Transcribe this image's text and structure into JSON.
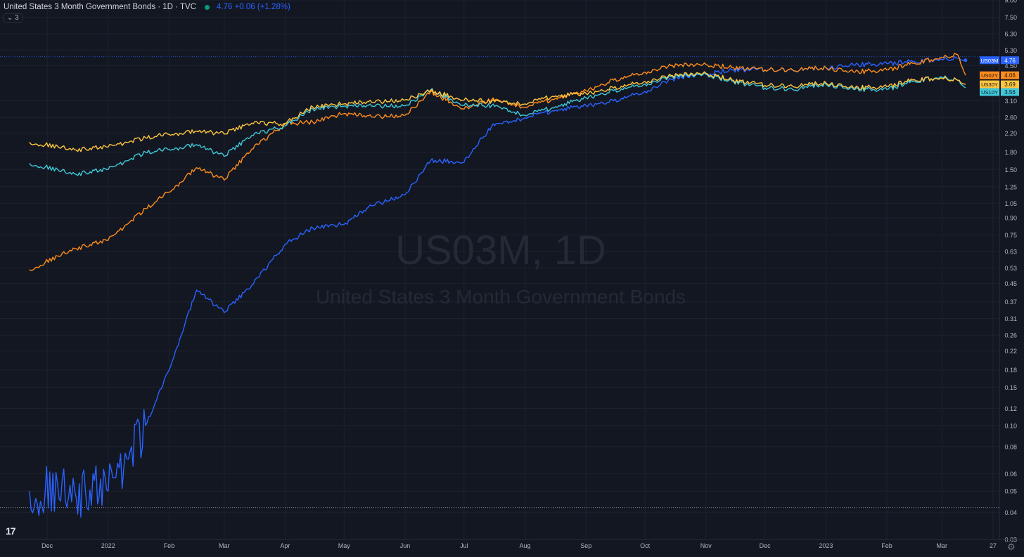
{
  "header": {
    "title": "United States 3 Month Government Bonds · 1D · TVC",
    "price_change": "4.76  +0.06 (+1.28%)",
    "collapse_label": "⌄ 3"
  },
  "watermark": {
    "symbol": "US03M, 1D",
    "name": "United States 3 Month Government Bonds"
  },
  "logo": "17",
  "colors": {
    "background": "#131722",
    "US03M": "#2962ff",
    "US02Y": "#ff8c1a",
    "US30Y": "#ffc53d",
    "US10Y": "#40c8d8"
  },
  "chart_data": {
    "type": "line",
    "yscale": "log",
    "ylim": [
      0.03,
      9.0
    ],
    "grid": true,
    "y_ticks": [
      "9.00",
      "7.50",
      "6.30",
      "5.30",
      "4.50",
      "3.10",
      "2.60",
      "2.20",
      "1.80",
      "1.50",
      "1.25",
      "1.05",
      "0.90",
      "0.75",
      "0.63",
      "0.53",
      "0.45",
      "0.37",
      "0.31",
      "0.26",
      "0.22",
      "0.18",
      "0.15",
      "0.12",
      "0.10",
      "0.08",
      "0.06",
      "0.05",
      "0.04",
      "0.03"
    ],
    "x_ticks": [
      "Dec",
      "2022",
      "Feb",
      "Mar",
      "Apr",
      "May",
      "Jun",
      "Jul",
      "Aug",
      "Sep",
      "Oct",
      "Nov",
      "Dec",
      "2023",
      "Feb",
      "Mar",
      "27"
    ],
    "x": [
      "2021-11-22",
      "2021-12-15",
      "2022-01-01",
      "2022-01-20",
      "2022-02-01",
      "2022-02-15",
      "2022-03-01",
      "2022-03-15",
      "2022-04-01",
      "2022-04-15",
      "2022-05-01",
      "2022-05-15",
      "2022-06-01",
      "2022-06-14",
      "2022-07-01",
      "2022-07-15",
      "2022-08-01",
      "2022-08-15",
      "2022-09-01",
      "2022-09-15",
      "2022-10-01",
      "2022-10-15",
      "2022-11-01",
      "2022-11-15",
      "2022-12-01",
      "2022-12-15",
      "2023-01-01",
      "2023-01-15",
      "2023-02-01",
      "2023-02-15",
      "2023-03-01",
      "2023-03-09",
      "2023-03-13"
    ],
    "series": [
      {
        "name": "US03M",
        "last": "4.76",
        "values": [
          0.05,
          0.05,
          0.05,
          0.1,
          0.18,
          0.42,
          0.33,
          0.44,
          0.68,
          0.81,
          0.84,
          1.02,
          1.15,
          1.65,
          1.62,
          2.37,
          2.59,
          2.79,
          2.95,
          3.1,
          3.42,
          3.9,
          4.13,
          4.3,
          4.3,
          4.29,
          4.4,
          4.52,
          4.6,
          4.7,
          4.8,
          4.85,
          4.76
        ]
      },
      {
        "name": "US02Y",
        "last": "4.06",
        "values": [
          0.52,
          0.65,
          0.71,
          0.99,
          1.18,
          1.53,
          1.34,
          1.86,
          2.43,
          2.48,
          2.71,
          2.61,
          2.66,
          3.41,
          2.84,
          3.14,
          2.9,
          3.15,
          3.45,
          3.86,
          4.2,
          4.5,
          4.55,
          4.4,
          4.3,
          4.3,
          4.4,
          4.2,
          4.3,
          4.62,
          4.89,
          5.05,
          4.06
        ]
      },
      {
        "name": "US30Y",
        "last": "3.69",
        "values": [
          2.0,
          1.85,
          1.9,
          2.1,
          2.17,
          2.25,
          2.18,
          2.45,
          2.44,
          2.91,
          3.0,
          3.05,
          3.13,
          3.45,
          3.12,
          3.08,
          3.0,
          3.25,
          3.35,
          3.55,
          3.8,
          4.05,
          4.15,
          3.85,
          3.65,
          3.62,
          3.75,
          3.55,
          3.6,
          3.88,
          3.93,
          3.85,
          3.69
        ]
      },
      {
        "name": "US10Y",
        "last": "3.56",
        "values": [
          1.6,
          1.43,
          1.5,
          1.8,
          1.85,
          1.95,
          1.72,
          2.15,
          2.38,
          2.85,
          2.93,
          2.93,
          2.94,
          3.48,
          2.95,
          2.95,
          2.66,
          2.88,
          3.2,
          3.45,
          3.7,
          4.0,
          4.1,
          3.8,
          3.55,
          3.5,
          3.7,
          3.5,
          3.5,
          3.82,
          3.98,
          3.85,
          3.56
        ]
      }
    ]
  }
}
